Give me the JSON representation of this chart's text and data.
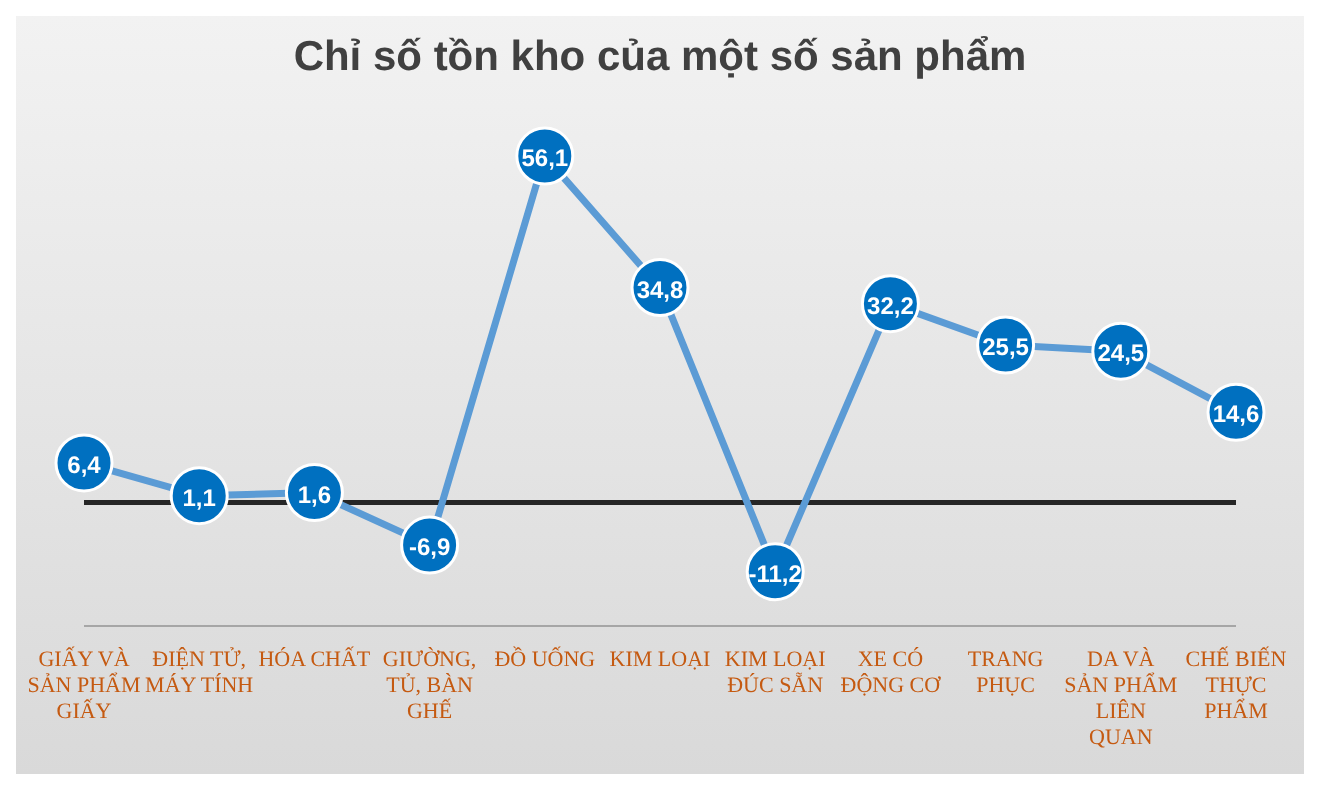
{
  "chart_data": {
    "type": "line",
    "title": "Chỉ số tồn kho của một số sản phẩm",
    "categories": [
      "GIẤY VÀ SẢN PHẨM GIẤY",
      "ĐIỆN TỬ, MÁY TÍNH",
      "HÓA CHẤT",
      "GIƯỜNG, TỦ, BÀN GHẾ",
      "ĐỒ UỐNG",
      "KIM LOẠI",
      "KIM LOẠI ĐÚC SẴN",
      "XE CÓ ĐỘNG CƠ",
      "TRANG PHỤC",
      "DA VÀ SẢN PHẨM LIÊN QUAN",
      "CHẾ BIẾN THỰC PHẨM"
    ],
    "series": [
      {
        "color": "#5b9bd5",
        "values": [
          6.4,
          1.1,
          1.6,
          -6.9,
          56.1,
          34.8,
          -11.2,
          32.2,
          25.5,
          24.5,
          14.6
        ],
        "value_labels": [
          "6,4",
          "1,1",
          "1,6",
          "-6,9",
          "56,1",
          "34,8",
          "-11,2",
          "32,2",
          "25,5",
          "24,5",
          "14,6"
        ]
      }
    ],
    "tick_labels": "x",
    "marker": "circle",
    "line_style": "solid"
  }
}
